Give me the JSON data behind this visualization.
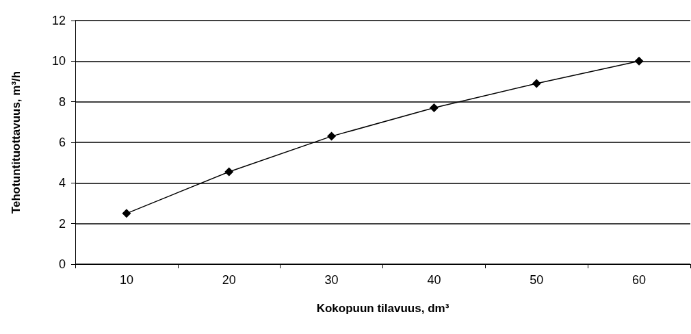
{
  "chart_data": {
    "type": "line",
    "xlabel": "Kokopuun tilavuus, dm³",
    "ylabel": "Tehotuntituottavuus, m³/h",
    "categories": [
      "10",
      "20",
      "30",
      "40",
      "50",
      "60"
    ],
    "series": [
      {
        "color": "#000000",
        "values": [
          2.5,
          4.55,
          6.3,
          7.7,
          8.9,
          10
        ]
      }
    ],
    "ylim": [
      0,
      12
    ],
    "yticks": [
      0,
      2,
      4,
      6,
      8,
      10,
      12
    ],
    "grid": "y",
    "marker": "diamond",
    "line_style": "solid"
  }
}
